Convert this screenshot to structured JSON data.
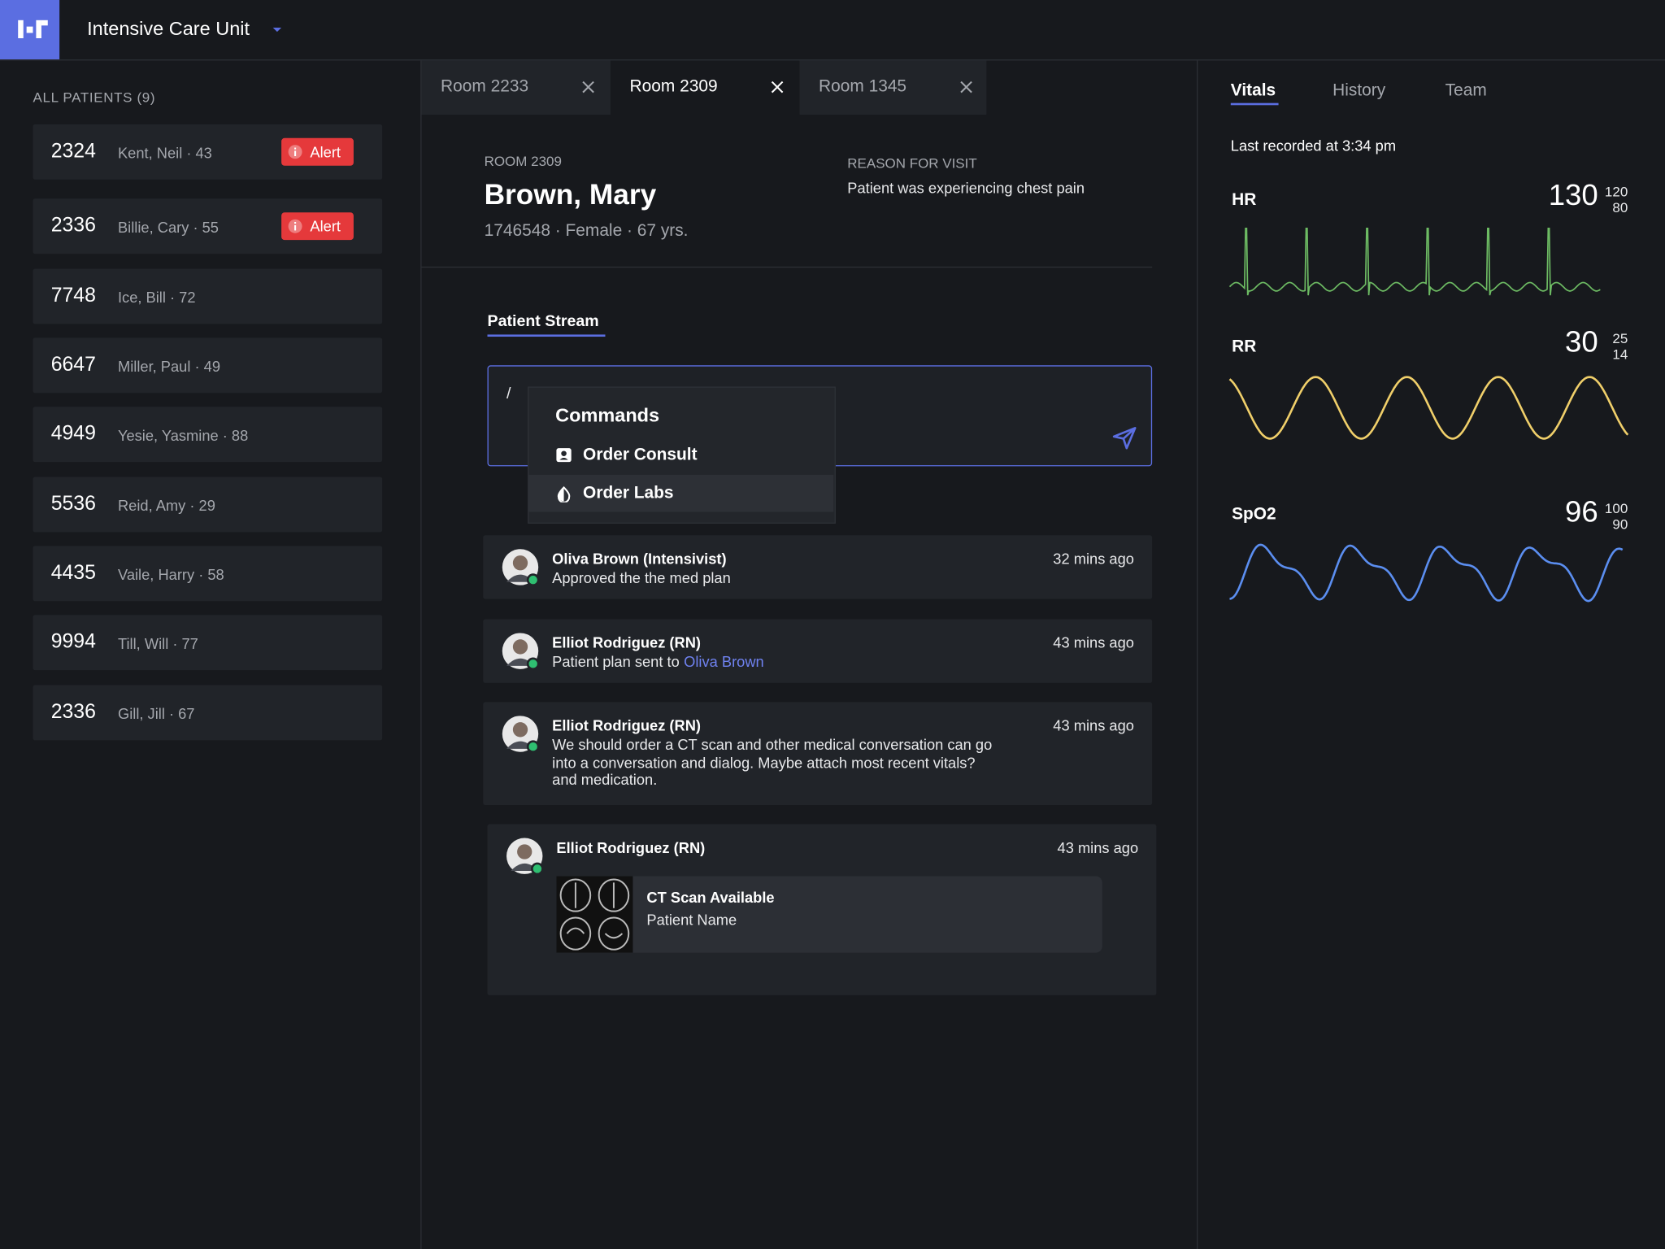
{
  "header": {
    "unit": "Intensive Care Unit"
  },
  "sidebar": {
    "title": "ALL PATIENTS (9)",
    "patients": [
      {
        "room": "2324",
        "name": "Kent, Neil · 43",
        "alert": "Alert"
      },
      {
        "room": "2336",
        "name": "Billie, Cary · 55",
        "alert": "Alert"
      },
      {
        "room": "7748",
        "name": "Ice, Bill · 72"
      },
      {
        "room": "6647",
        "name": "Miller, Paul · 49"
      },
      {
        "room": "4949",
        "name": "Yesie, Yasmine · 88"
      },
      {
        "room": "5536",
        "name": "Reid, Amy · 29"
      },
      {
        "room": "4435",
        "name": "Vaile, Harry · 58"
      },
      {
        "room": "9994",
        "name": "Till, Will · 77"
      },
      {
        "room": "2336",
        "name": "Gill, Jill · 67"
      }
    ]
  },
  "tabs": [
    {
      "label": "Room 2233",
      "active": false
    },
    {
      "label": "Room 2309",
      "active": true
    },
    {
      "label": "Room 1345",
      "active": false
    }
  ],
  "patient": {
    "room": "ROOM 2309",
    "name": "Brown, Mary",
    "details": "1746548 · Female · 67 yrs.",
    "reason_label": "REASON FOR VISIT",
    "reason": "Patient was experiencing chest pain"
  },
  "stream": {
    "title": "Patient Stream",
    "input": "/",
    "commands": {
      "title": "Commands",
      "items": [
        "Order Consult",
        "Order Labs"
      ]
    },
    "messages": [
      {
        "author": "Oliva Brown (Intensivist)",
        "time": "32 mins ago",
        "text": "Approved the the med plan"
      },
      {
        "author": "Elliot Rodriguez (RN)",
        "time": "43 mins ago",
        "text": "Patient plan sent to",
        "link": "Oliva Brown"
      },
      {
        "author": "Elliot Rodriguez (RN)",
        "time": "43 mins ago",
        "text": "We should order a CT scan and other medical conversation can go into a conversation and dialog. Maybe attach most recent vitals? and medication."
      },
      {
        "author": "Elliot Rodriguez (RN)",
        "time": "43 mins ago",
        "attachment": {
          "title": "CT Scan Available",
          "subtitle": "Patient Name"
        }
      }
    ]
  },
  "vitals": {
    "tabs": [
      "Vitals",
      "History",
      "Team"
    ],
    "last_recorded": "Last recorded at 3:34 pm",
    "signs": [
      {
        "label": "HR",
        "value": 130,
        "high": 120,
        "low": 80,
        "color": "#6dbb63"
      },
      {
        "label": "RR",
        "value": 30,
        "high": 25,
        "low": 14,
        "color": "#f0cf6a"
      },
      {
        "label": "SpO2",
        "value": 96,
        "high": 100,
        "low": 90,
        "color": "#5b8ef0"
      }
    ]
  }
}
